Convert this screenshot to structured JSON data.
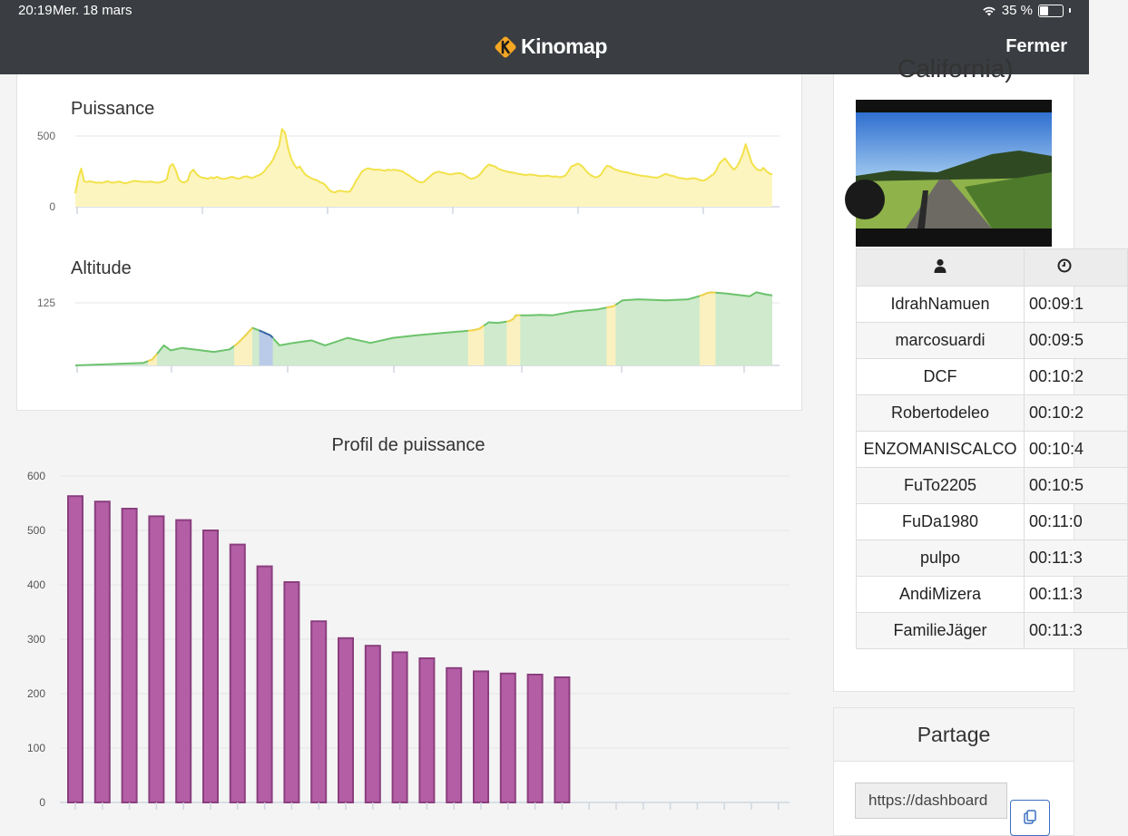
{
  "status": {
    "time": "20:19",
    "date": "Mer. 18 mars",
    "battery_text": "35 %",
    "battery_level": 0.35,
    "wifi_icon": "wifi-icon"
  },
  "header": {
    "logo_text": "Kinomap",
    "logo_icon": "kinomap-logo-icon",
    "close_label": "Fermer",
    "bg": "#3a3d41"
  },
  "power_chart": {
    "title": "Puissance",
    "type": "area",
    "yticks": [
      "500",
      "0"
    ],
    "ylim": [
      0,
      600
    ],
    "color": "#f2e24b",
    "fill": "#fdf5bf",
    "values": [
      95,
      205,
      270,
      180,
      175,
      180,
      175,
      170,
      172,
      168,
      175,
      180,
      172,
      170,
      175,
      178,
      170,
      165,
      172,
      178,
      183,
      180,
      178,
      176,
      175,
      178,
      176,
      172,
      170,
      175,
      180,
      196,
      285,
      302,
      260,
      195,
      175,
      172,
      185,
      242,
      262,
      232,
      215,
      205,
      202,
      198,
      208,
      202,
      212,
      202,
      196,
      200,
      205,
      212,
      205,
      198,
      202,
      212,
      215,
      208,
      202,
      214,
      222,
      232,
      252,
      280,
      302,
      335,
      385,
      430,
      550,
      522,
      420,
      345,
      302,
      272,
      285,
      252,
      225,
      212,
      200,
      192,
      185,
      172,
      165,
      145,
      118,
      105,
      102,
      112,
      112,
      108,
      106,
      108,
      140,
      182,
      212,
      248,
      262,
      272,
      268,
      262,
      262,
      262,
      258,
      255,
      262,
      258,
      262,
      258,
      255,
      248,
      232,
      222,
      205,
      192,
      178,
      172,
      175,
      195,
      212,
      232,
      242,
      248,
      242,
      238,
      232,
      228,
      232,
      235,
      238,
      232,
      222,
      208,
      198,
      202,
      212,
      228,
      255,
      280,
      298,
      292,
      285,
      272,
      262,
      255,
      250,
      245,
      242,
      238,
      232,
      230,
      225,
      225,
      228,
      225,
      222,
      218,
      216,
      218,
      220,
      215,
      212,
      215,
      208,
      212,
      222,
      252,
      285,
      292,
      305,
      296,
      278,
      252,
      232,
      218,
      208,
      212,
      228,
      262,
      290,
      285,
      272,
      262,
      255,
      248,
      245,
      242,
      235,
      230,
      226,
      222,
      218,
      216,
      214,
      210,
      208,
      206,
      212,
      225,
      232,
      225,
      218,
      215,
      206,
      202,
      200,
      195,
      198,
      202,
      200,
      192,
      185,
      188,
      198,
      215,
      228,
      255,
      302,
      325,
      342,
      312,
      285,
      262,
      282,
      322,
      372,
      442,
      378,
      312,
      282,
      262,
      255,
      275,
      252,
      235,
      228
    ]
  },
  "altitude_chart": {
    "title": "Altitude",
    "type": "area",
    "yticks": [
      "125"
    ],
    "ylim": [
      0,
      160
    ],
    "line_color": "#6cc36c",
    "fill_color": "#cfeacc",
    "climb_color": "#fbf1c0",
    "climb_line": "#f2d34b",
    "descent_color": "#b9cbe6",
    "descent_line": "#3a64a8",
    "points": [
      [
        0,
        0
      ],
      [
        30,
        5
      ],
      [
        34,
        12
      ],
      [
        39,
        40
      ],
      [
        42,
        30
      ],
      [
        47,
        35
      ],
      [
        61,
        27
      ],
      [
        68,
        32
      ],
      [
        71,
        42
      ],
      [
        74,
        55
      ],
      [
        78,
        75
      ],
      [
        81,
        70
      ],
      [
        86,
        60
      ],
      [
        90,
        40
      ],
      [
        96,
        45
      ],
      [
        104,
        50
      ],
      [
        110,
        40
      ],
      [
        120,
        55
      ],
      [
        130,
        45
      ],
      [
        140,
        55
      ],
      [
        150,
        60
      ],
      [
        162,
        65
      ],
      [
        175,
        70
      ],
      [
        178,
        73
      ],
      [
        182,
        86
      ],
      [
        186,
        85
      ],
      [
        191,
        88
      ],
      [
        193,
        93
      ],
      [
        194,
        100
      ],
      [
        200,
        100
      ],
      [
        205,
        101
      ],
      [
        210,
        100
      ],
      [
        220,
        108
      ],
      [
        230,
        112
      ],
      [
        237,
        118
      ],
      [
        239,
        124
      ],
      [
        241,
        130
      ],
      [
        248,
        132
      ],
      [
        260,
        130
      ],
      [
        270,
        132
      ],
      [
        276,
        140
      ],
      [
        278,
        144
      ],
      [
        280,
        146
      ],
      [
        286,
        144
      ],
      [
        297,
        138
      ],
      [
        300,
        146
      ],
      [
        304,
        142
      ],
      [
        307,
        140
      ]
    ],
    "climb_ranges": [
      [
        32,
        36
      ],
      [
        70,
        78
      ],
      [
        173,
        180
      ],
      [
        190,
        196
      ],
      [
        234,
        238
      ],
      [
        275,
        282
      ]
    ],
    "descent_ranges": [
      [
        81,
        87
      ]
    ]
  },
  "chart_data": {
    "type": "bar",
    "title": "Profil de puissance",
    "ylim": [
      0,
      600
    ],
    "yticks": [
      "0",
      "100",
      "200",
      "300",
      "400",
      "500",
      "600"
    ],
    "values": [
      563,
      553,
      540,
      526,
      519,
      500,
      474,
      434,
      405,
      333,
      302,
      288,
      276,
      265,
      247,
      241,
      237,
      235,
      230
    ],
    "color": "#b45ea6",
    "border": "#8a3f7e"
  },
  "video": {
    "thumb_icon": "ride-video-thumbnail"
  },
  "leaderboard": {
    "partial_title": "California)",
    "user_icon": "user-icon",
    "clock_icon": "clock-icon",
    "rows": [
      {
        "name": "IdrahNamuen",
        "time": "00:09:1"
      },
      {
        "name": "marcosuardi",
        "time": "00:09:5"
      },
      {
        "name": "DCF",
        "time": "00:10:2"
      },
      {
        "name": "Robertodeleo",
        "time": "00:10:2"
      },
      {
        "name": "ENZOMANISCALCO",
        "time": "00:10:4"
      },
      {
        "name": "FuTo2205",
        "time": "00:10:5"
      },
      {
        "name": "FuDa1980",
        "time": "00:11:0"
      },
      {
        "name": "pulpo",
        "time": "00:11:3"
      },
      {
        "name": "AndiMizera",
        "time": "00:11:3"
      },
      {
        "name": "FamilieJäger",
        "time": "00:11:3"
      }
    ]
  },
  "share": {
    "title": "Partage",
    "url_value": "https://dashboard",
    "copy_icon": "copy-icon"
  }
}
